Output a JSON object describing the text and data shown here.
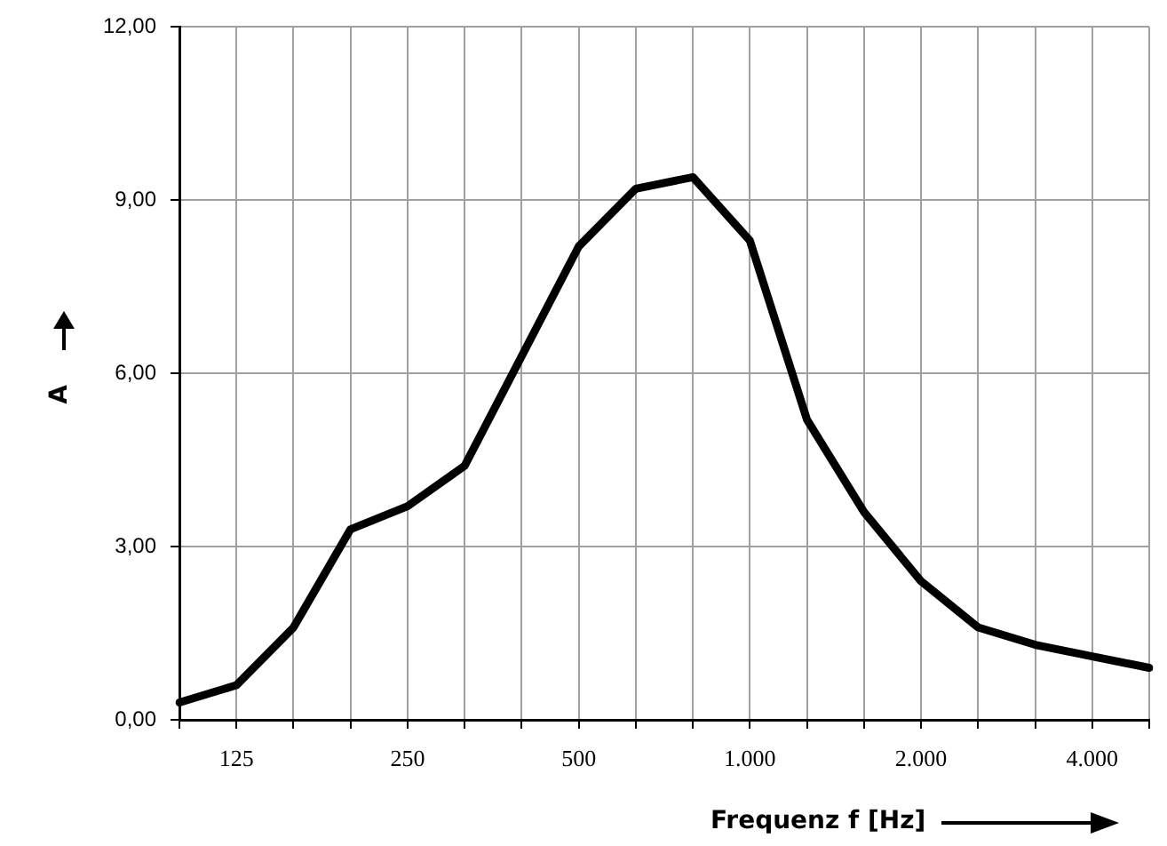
{
  "chart_data": {
    "type": "line",
    "xlabel": "Frequenz f [Hz]",
    "ylabel": "A",
    "categories": [
      null,
      "125",
      null,
      null,
      "250",
      null,
      null,
      "500",
      null,
      null,
      "1.000",
      null,
      null,
      "2.000",
      null,
      null,
      "4.000",
      null
    ],
    "series": [
      {
        "color": "#000000",
        "values": [
          0.3,
          0.6,
          1.6,
          3.3,
          3.7,
          4.4,
          6.3,
          8.2,
          9.2,
          9.4,
          8.3,
          5.2,
          3.6,
          2.4,
          1.6,
          1.3,
          1.1,
          0.9
        ]
      }
    ],
    "ylim": [
      0,
      12
    ],
    "yticks": [
      {
        "value": 0,
        "label": "0,00"
      },
      {
        "value": 3,
        "label": "3,00"
      },
      {
        "value": 6,
        "label": "6,00"
      },
      {
        "value": 9,
        "label": "9,00"
      },
      {
        "value": 12,
        "label": "12,00"
      }
    ],
    "grid": true,
    "legend": false,
    "marker": "none",
    "line_style": "solid"
  }
}
